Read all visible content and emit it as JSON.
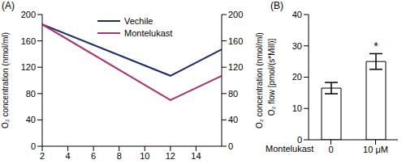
{
  "chart_data": [
    {
      "type": "line",
      "title": "(A)",
      "x": [
        2,
        12,
        16
      ],
      "series": [
        {
          "name": "Vechile",
          "color": "#1f2a6b",
          "values": [
            185,
            107,
            147
          ]
        },
        {
          "name": "Montelukast",
          "color": "#a8336e",
          "values": [
            185,
            70,
            107
          ]
        }
      ],
      "xlim": [
        2,
        16
      ],
      "xticks": [
        2,
        4,
        6,
        8,
        10,
        12,
        14
      ],
      "ylim": [
        0,
        200
      ],
      "yticks": [
        0,
        40,
        80,
        120,
        160,
        200
      ],
      "y2lim": [
        0,
        200
      ],
      "y2ticks": [
        0,
        40,
        80,
        120,
        160,
        200
      ],
      "y_label": "O₂ concentration (nmol/ml)",
      "y2_label": "O₂ concentration (nmol/ml)",
      "legend": "top"
    },
    {
      "type": "bar",
      "title": "(B)",
      "categories": [
        "0",
        "10 μM"
      ],
      "values": [
        16.5,
        25
      ],
      "errors": [
        1.8,
        2.5
      ],
      "color": "#ffffff",
      "ylim": [
        0,
        40
      ],
      "yticks": [
        0,
        10,
        20,
        30,
        40
      ],
      "y_label": "O₂ flow [pmol/(s*Mill)]",
      "x_label": "Montelukast",
      "annotations": [
        {
          "text": "*",
          "category": "10 μM"
        }
      ]
    }
  ]
}
